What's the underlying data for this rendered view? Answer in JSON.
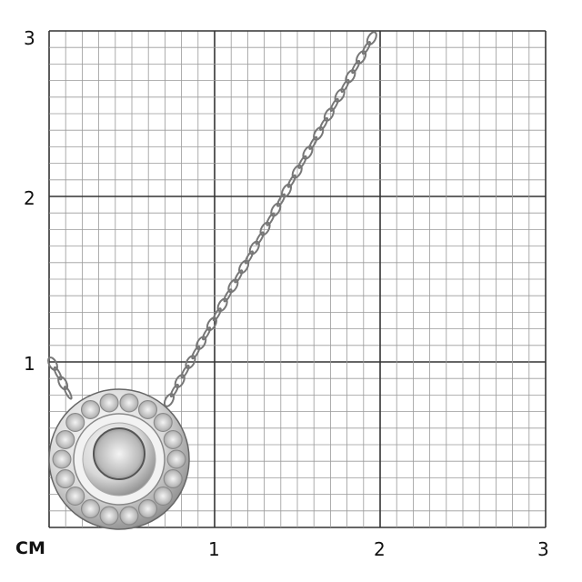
{
  "scale": {
    "unit": "CM",
    "y_ticks": [
      "1",
      "2",
      "3"
    ],
    "x_ticks": [
      "1",
      "2",
      "3"
    ],
    "minor_divisions_per_unit": 10
  },
  "colors": {
    "grid_major": "#333333",
    "grid_minor": "#9a9a9a",
    "metal": "#c8c8c8"
  }
}
